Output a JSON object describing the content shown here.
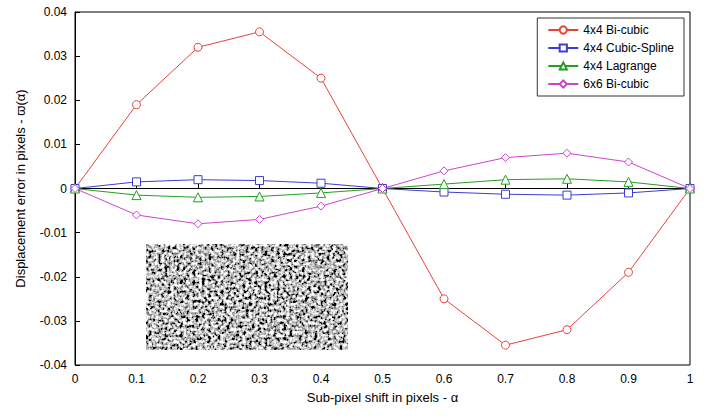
{
  "chart_data": {
    "type": "line",
    "x_label": "Sub-pixel shift in pixels - α",
    "y_label": "Displacement error in pixels - ϖ(α)",
    "x": [
      0,
      0.1,
      0.2,
      0.3,
      0.4,
      0.5,
      0.6,
      0.7,
      0.8,
      0.9,
      1
    ],
    "series": [
      {
        "name": "4x4 Bi-cubic",
        "color": "#e8413c",
        "marker": "circle",
        "values": [
          0,
          0.019,
          0.032,
          0.0355,
          0.025,
          0,
          -0.025,
          -0.0355,
          -0.032,
          -0.019,
          0
        ]
      },
      {
        "name": "4x4 Cubic-Spline",
        "color": "#3d3dd6",
        "marker": "square",
        "values": [
          0,
          0.0015,
          0.002,
          0.0018,
          0.0012,
          0,
          -0.0008,
          -0.0013,
          -0.0015,
          -0.001,
          0
        ]
      },
      {
        "name": "4x4 Lagrange",
        "color": "#22a022",
        "marker": "triangle",
        "values": [
          0,
          -0.0015,
          -0.002,
          -0.0018,
          -0.001,
          0,
          0.001,
          0.002,
          0.0022,
          0.0015,
          0
        ]
      },
      {
        "name": "6x6 Bi-cubic",
        "color": "#cc44cc",
        "marker": "diamond",
        "values": [
          0,
          -0.006,
          -0.008,
          -0.007,
          -0.004,
          0,
          0.004,
          0.007,
          0.008,
          0.006,
          0
        ]
      }
    ],
    "xlim": [
      0,
      1
    ],
    "xticks": [
      0,
      0.1,
      0.2,
      0.3,
      0.4,
      0.5,
      0.6,
      0.7,
      0.8,
      0.9,
      1
    ],
    "ylim": [
      -0.04,
      0.04
    ],
    "yticks": [
      -0.04,
      -0.03,
      -0.02,
      -0.01,
      0,
      0.01,
      0.02,
      0.03,
      0.04
    ],
    "grid": false,
    "legend": "upper right"
  }
}
